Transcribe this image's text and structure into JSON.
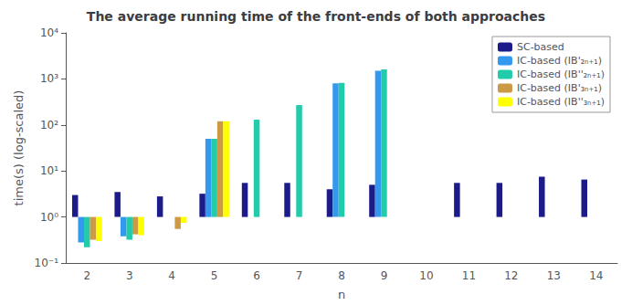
{
  "chart_data": {
    "type": "bar",
    "title": "The average running time of the front-ends of both approaches",
    "x_label": "n",
    "y_label": "time(s) (log-scaled)",
    "categories": [
      2,
      3,
      4,
      5,
      6,
      7,
      8,
      9,
      10,
      11,
      12,
      13,
      14
    ],
    "series": [
      {
        "name": "SC-based",
        "color": "#1b1b8a",
        "values": [
          3.0,
          3.5,
          2.8,
          3.2,
          5.5,
          5.5,
          4.0,
          5.0,
          null,
          5.5,
          5.5,
          7.5,
          6.5
        ]
      },
      {
        "name": "IC-based (IB'₂ₙ₊₁)",
        "color": "#3399ee",
        "values": [
          0.28,
          0.38,
          null,
          50.0,
          null,
          null,
          800.0,
          1500.0,
          null,
          null,
          null,
          null,
          null
        ]
      },
      {
        "name": "IC-based (IB''₂ₙ₊₁)",
        "color": "#22ccaa",
        "values": [
          0.22,
          0.32,
          null,
          50.0,
          130.0,
          270.0,
          820.0,
          1600.0,
          null,
          null,
          null,
          null,
          null
        ]
      },
      {
        "name": "IC-based (IB'₃ₙ₊₁)",
        "color": "#cc9944",
        "values": [
          0.32,
          0.42,
          0.55,
          120.0,
          null,
          null,
          null,
          null,
          null,
          null,
          null,
          null,
          null
        ]
      },
      {
        "name": "IC-based (IB''₃ₙ₊₁)",
        "color": "#ffff00",
        "values": [
          0.3,
          0.4,
          0.75,
          120.0,
          null,
          null,
          null,
          null,
          null,
          null,
          null,
          null,
          null
        ]
      }
    ],
    "log": "y",
    "ylim": [
      0.1,
      10000
    ],
    "yticks": [
      {
        "value": 0.1,
        "label": "10⁻¹"
      },
      {
        "value": 1,
        "label": "10⁰"
      },
      {
        "value": 10,
        "label": "10¹"
      },
      {
        "value": 100,
        "label": "10²"
      },
      {
        "value": 1000,
        "label": "10³"
      },
      {
        "value": 10000,
        "label": "10⁴"
      }
    ],
    "grid": false,
    "legend": "upper right"
  }
}
